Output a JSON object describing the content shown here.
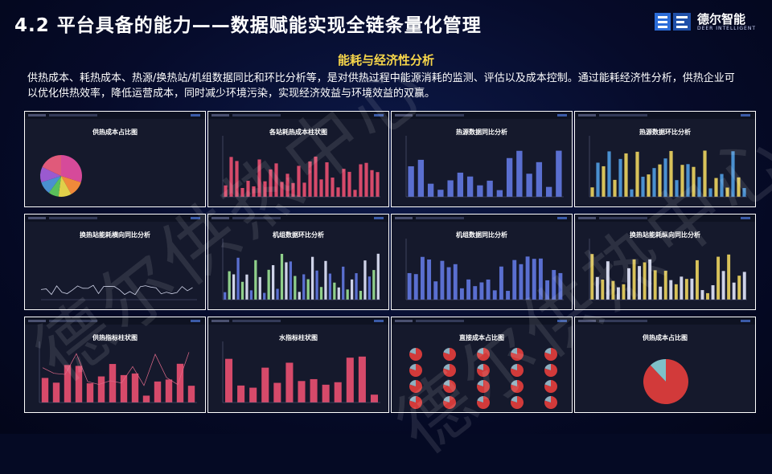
{
  "header": {
    "title": "4.2 平台具备的能力——数据赋能实现全链条量化管理",
    "logo_cn": "德尔智能",
    "logo_en": "DEER INTELLIGENT",
    "watermark": "德尔供热中心"
  },
  "section": {
    "subtitle": "能耗与经济性分析",
    "description": "供热成本、耗热成本、热源/换热站/机组数据同比和环比分析等，是对供热过程中能源消耗的监测、评估以及成本控制。通过能耗经济性分析，供热企业可以优化供热效率，降低运营成本，同时减少环境污染，实现经济效益与环境效益的双赢。"
  },
  "colors": {
    "accent_yellow": "#f7d64a",
    "bar_red": "#d64a6a",
    "bar_blue": "#5a6fd0",
    "bar_yellow": "#d8c25a",
    "bar_green": "#8fcf8a",
    "pie_red": "#d23a3a"
  },
  "panels": [
    {
      "title": "供热成本占比图",
      "kind": "pie"
    },
    {
      "title": "各站耗热成本柱状图",
      "kind": "bar-red"
    },
    {
      "title": "热源数据同比分析",
      "kind": "bar-blue"
    },
    {
      "title": "热源数据环比分析",
      "kind": "bar-yellow"
    },
    {
      "title": "换热站能耗横向同比分析",
      "kind": "line"
    },
    {
      "title": "机组数据环比分析",
      "kind": "bar-multi"
    },
    {
      "title": "机组数据同比分析",
      "kind": "bar-blue2"
    },
    {
      "title": "换热站能耗纵向同比分析",
      "kind": "bar-yellow2"
    },
    {
      "title": "供热指标柱状图",
      "kind": "bar-red-line"
    },
    {
      "title": "水指标柱状图",
      "kind": "bar-red2"
    },
    {
      "title": "直接成本占比图",
      "kind": "pie-grid"
    },
    {
      "title": "供热成本占比图",
      "kind": "pie-big"
    }
  ]
}
